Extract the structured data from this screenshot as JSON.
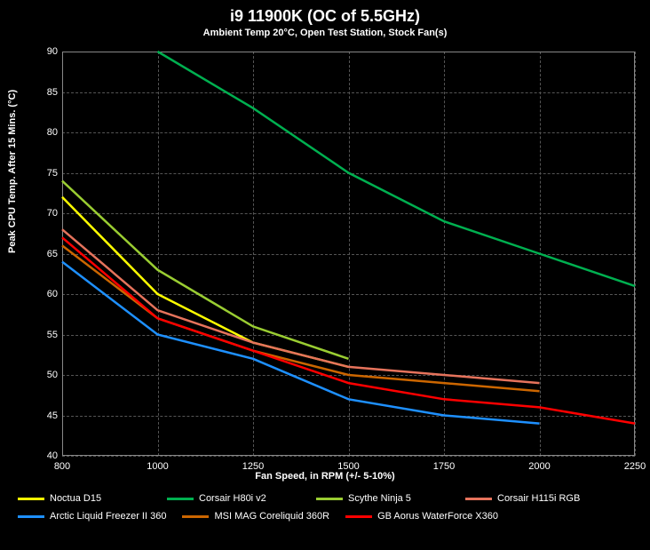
{
  "title": "i9 11900K (OC of 5.5GHz)",
  "subtitle": "Ambient Temp 20°C, Open Test Station, Stock Fan(s)",
  "ylabel": "Peak CPU Temp. After 15 Mins. (°C)",
  "xlabel": "Fan Speed, in RPM (+/- 5-10%)",
  "chart": {
    "type": "line",
    "background_color": "#000000",
    "grid_color": "#555555",
    "text_color": "#ffffff",
    "xlim": [
      800,
      2250
    ],
    "x_ticks": [
      800,
      1000,
      1250,
      1500,
      1750,
      2000,
      2250
    ],
    "ylim": [
      40,
      90
    ],
    "y_ticks": [
      40,
      45,
      50,
      55,
      60,
      65,
      70,
      75,
      80,
      85,
      90
    ],
    "line_width": 2.5,
    "series": [
      {
        "name": "Noctua D15",
        "color": "#ffff00",
        "x": [
          800,
          1000,
          1250,
          1500
        ],
        "y": [
          72,
          60,
          54,
          51
        ]
      },
      {
        "name": "Corsair H80i v2",
        "color": "#00b050",
        "x": [
          1000,
          1250,
          1500,
          1750,
          2000,
          2250
        ],
        "y": [
          90,
          83,
          75,
          69,
          65,
          61
        ]
      },
      {
        "name": "Scythe Ninja 5",
        "color": "#9acd32",
        "x": [
          800,
          1000,
          1250,
          1500
        ],
        "y": [
          74,
          63,
          56,
          52
        ]
      },
      {
        "name": "Corsair H115i RGB",
        "color": "#e6735c",
        "x": [
          800,
          1000,
          1250,
          1500,
          1750,
          2000
        ],
        "y": [
          68,
          58,
          54,
          51,
          50,
          49
        ]
      },
      {
        "name": "Arctic Liquid Freezer II 360",
        "color": "#1e90ff",
        "x": [
          800,
          1000,
          1250,
          1500,
          1750,
          2000
        ],
        "y": [
          64,
          55,
          52,
          47,
          45,
          44
        ]
      },
      {
        "name": "MSI MAG Coreliquid 360R",
        "color": "#cc6600",
        "x": [
          800,
          1000,
          1250,
          1500,
          1750,
          2000
        ],
        "y": [
          66,
          57,
          53,
          50,
          49,
          48
        ]
      },
      {
        "name": "GB Aorus WaterForce X360",
        "color": "#ff0000",
        "x": [
          800,
          1000,
          1250,
          1500,
          1750,
          2000,
          2250
        ],
        "y": [
          67,
          57,
          53,
          49,
          47,
          46,
          44
        ]
      }
    ]
  }
}
